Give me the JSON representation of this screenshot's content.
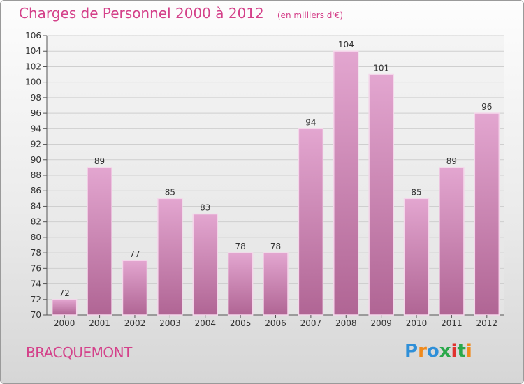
{
  "header": {
    "title": "Charges de Personnel 2000 à 2012",
    "unit": "(en milliers d'€)"
  },
  "footer": {
    "city": "BRACQUEMONT",
    "logo_text": "Proxiti",
    "logo_colors": [
      "#2e8fd8",
      "#f08a1c",
      "#2e8fd8",
      "#2aa84a",
      "#e0322e",
      "#2aa84a",
      "#f08a1c"
    ]
  },
  "colors": {
    "accent": "#d4418a",
    "bar_top": "#e3a6d0",
    "bar_bottom": "#b06594",
    "bar_edge": "#f4d6ea",
    "grid": "#cfcfcf",
    "axis_text": "#333333"
  },
  "chart_data": {
    "type": "bar",
    "categories": [
      "2000",
      "2001",
      "2002",
      "2003",
      "2004",
      "2005",
      "2006",
      "2007",
      "2008",
      "2009",
      "2010",
      "2011",
      "2012"
    ],
    "values": [
      72,
      89,
      77,
      85,
      83,
      78,
      78,
      94,
      104,
      101,
      85,
      89,
      96
    ],
    "title": "Charges de Personnel 2000 à 2012",
    "ylim": [
      70,
      106
    ],
    "ytick_step": 2,
    "grid": true
  }
}
